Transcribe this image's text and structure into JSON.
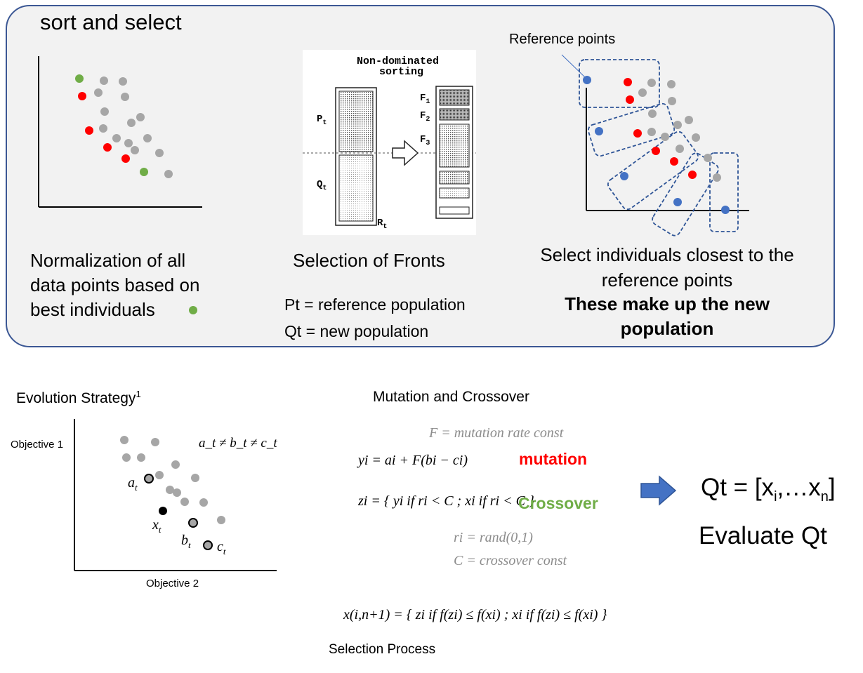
{
  "sort_select": {
    "title": "sort and select",
    "col1_text": [
      "Normalization of all",
      "data points based on",
      "best individuals"
    ],
    "col2_title": "Selection of Fronts",
    "col2_line1": "Pt = reference population",
    "col2_line2": "Qt = new population",
    "ref_label": "Reference points",
    "col3_line1": "Select individuals closest to the",
    "col3_line2": "reference points",
    "col3_bold1": "These make up the new",
    "col3_bold2": "population",
    "sorting_figure": {
      "heading1": "Non-dominated",
      "heading2": "sorting",
      "labels": {
        "P": "P",
        "P_sub": "t",
        "Q": "Q",
        "Q_sub": "t",
        "R": "R",
        "R_sub": "t",
        "F1": "F",
        "F1_sub": "1",
        "F2": "F",
        "F2_sub": "2",
        "F3": "F",
        "F3_sub": "3"
      }
    }
  },
  "evolution": {
    "title": "Evolution Strategy",
    "sup": "1",
    "ylabel": "Objective 1",
    "xlabel": "Objective 2",
    "vec_eq": "a_t ≠ b_t ≠ c_t",
    "points": {
      "a": "a",
      "b": "b",
      "c": "c",
      "x": "x",
      "sub": "t"
    }
  },
  "mutation": {
    "title": "Mutation and Crossover",
    "F_def": "F = mutation rate const",
    "y_eq": "yi = ai + F(bi − ci)",
    "mutation_label": "mutation",
    "z_eq": "zi = { yi if ri < C ; xi if ri < C }",
    "crossover_label": "Crossover",
    "r_def": "ri = rand(0,1)",
    "C_def": "C = crossover const",
    "x_eq": "x(i,n+1) = { zi if f(zi) ≤ f(xi) ; xi if f(zi) ≤ f(xi) }",
    "selection_label": "Selection Process"
  },
  "result": {
    "qt_lhs": "Qt = [x",
    "qt_sub1": "i",
    "qt_mid": ",…x",
    "qt_sub2": "n",
    "qt_end": "]",
    "evaluate": "Evaluate Qt"
  },
  "colors": {
    "panel_border": "#3b5794",
    "red": "#ff0000",
    "green": "#70ad47",
    "gray_point": "#a6a6a6",
    "blue": "#4472c4",
    "dash": "#2f5597"
  }
}
